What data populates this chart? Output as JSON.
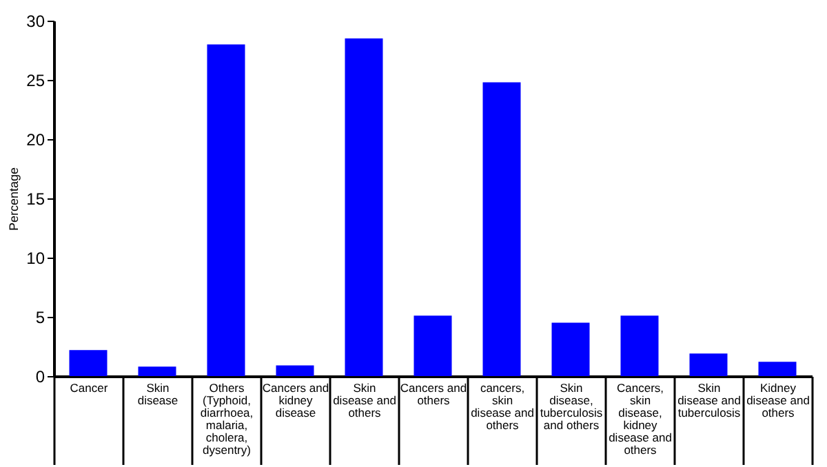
{
  "chart_data": {
    "type": "bar",
    "ylabel": "Percentage",
    "categories": [
      "Cancer",
      "Skin disease",
      "Others (Typhoid, diarrhoea, malaria, cholera, dysentry)",
      "Cancers and kidney disease",
      "Skin disease and others",
      "Cancers and others",
      "cancers, skin disease and others",
      "Skin disease, tuberculosis and others",
      "Cancers, skin disease, kidney disease and others",
      "Skin disease and tuberculosis",
      "Kidney disease and others"
    ],
    "values": [
      2.2,
      0.8,
      28.0,
      0.9,
      28.5,
      5.1,
      24.8,
      4.5,
      5.1,
      1.9,
      1.2
    ],
    "color": "#0000ff",
    "ylim": [
      0,
      30
    ],
    "yticks": [
      0,
      5,
      10,
      15,
      20,
      25,
      30
    ],
    "grid": false
  }
}
